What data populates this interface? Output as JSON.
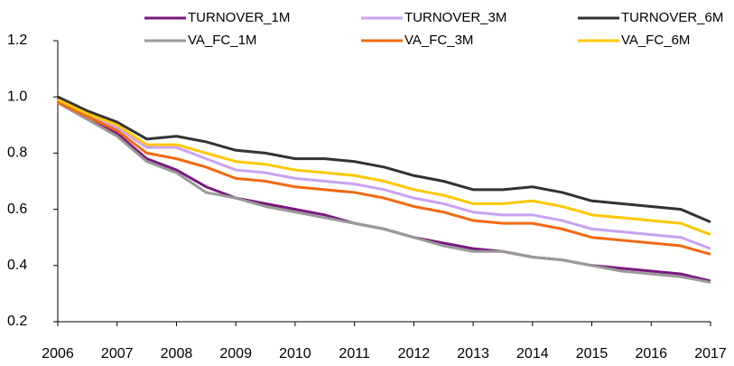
{
  "chart_data": {
    "type": "line",
    "categories": [
      "2006",
      null,
      "2007",
      null,
      "2008",
      null,
      "2009",
      null,
      "2010",
      null,
      "2011",
      null,
      "2012",
      null,
      "2013",
      null,
      "2014",
      null,
      "2015",
      null,
      "2016",
      null,
      "2017"
    ],
    "ylim": [
      0.2,
      1.2
    ],
    "yticks": [
      {
        "value": 0.2,
        "label": "0.2"
      },
      {
        "value": 0.4,
        "label": "0.4"
      },
      {
        "value": 0.6,
        "label": "0.6"
      },
      {
        "value": 0.8,
        "label": "0.8"
      },
      {
        "value": 1.0,
        "label": "1.0"
      },
      {
        "value": 1.2,
        "label": "1.2"
      }
    ],
    "grid": false,
    "series": [
      {
        "name": "TURNOVER_1M",
        "color": "#7a1a7e",
        "values": [
          0.98,
          0.92,
          0.87,
          0.78,
          0.74,
          0.68,
          0.64,
          0.62,
          0.6,
          0.58,
          0.55,
          0.53,
          0.5,
          0.48,
          0.46,
          0.45,
          0.43,
          0.42,
          0.4,
          0.39,
          0.38,
          0.37,
          0.345
        ]
      },
      {
        "name": "TURNOVER_3M",
        "color": "#c9a2f2",
        "values": [
          0.99,
          0.94,
          0.89,
          0.82,
          0.82,
          0.78,
          0.74,
          0.73,
          0.71,
          0.7,
          0.69,
          0.67,
          0.64,
          0.62,
          0.59,
          0.58,
          0.58,
          0.56,
          0.53,
          0.52,
          0.51,
          0.5,
          0.46
        ]
      },
      {
        "name": "TURNOVER_6M",
        "color": "#333333",
        "values": [
          1.0,
          0.95,
          0.91,
          0.85,
          0.86,
          0.84,
          0.81,
          0.8,
          0.78,
          0.78,
          0.77,
          0.75,
          0.72,
          0.7,
          0.67,
          0.67,
          0.68,
          0.66,
          0.63,
          0.62,
          0.61,
          0.6,
          0.555
        ]
      },
      {
        "name": "VA_FC_1M",
        "color": "#999999",
        "values": [
          0.98,
          0.92,
          0.86,
          0.77,
          0.73,
          0.66,
          0.64,
          0.61,
          0.59,
          0.57,
          0.55,
          0.53,
          0.5,
          0.47,
          0.45,
          0.45,
          0.43,
          0.42,
          0.4,
          0.38,
          0.37,
          0.36,
          0.34
        ]
      },
      {
        "name": "VA_FC_3M",
        "color": "#f26a10",
        "values": [
          0.98,
          0.93,
          0.88,
          0.8,
          0.78,
          0.75,
          0.71,
          0.7,
          0.68,
          0.67,
          0.66,
          0.64,
          0.61,
          0.59,
          0.56,
          0.55,
          0.55,
          0.53,
          0.5,
          0.49,
          0.48,
          0.47,
          0.44
        ]
      },
      {
        "name": "VA_FC_6M",
        "color": "#ffc800",
        "values": [
          0.99,
          0.94,
          0.9,
          0.83,
          0.83,
          0.8,
          0.77,
          0.76,
          0.74,
          0.73,
          0.72,
          0.7,
          0.67,
          0.65,
          0.62,
          0.62,
          0.63,
          0.61,
          0.58,
          0.57,
          0.56,
          0.55,
          0.51
        ]
      }
    ]
  }
}
